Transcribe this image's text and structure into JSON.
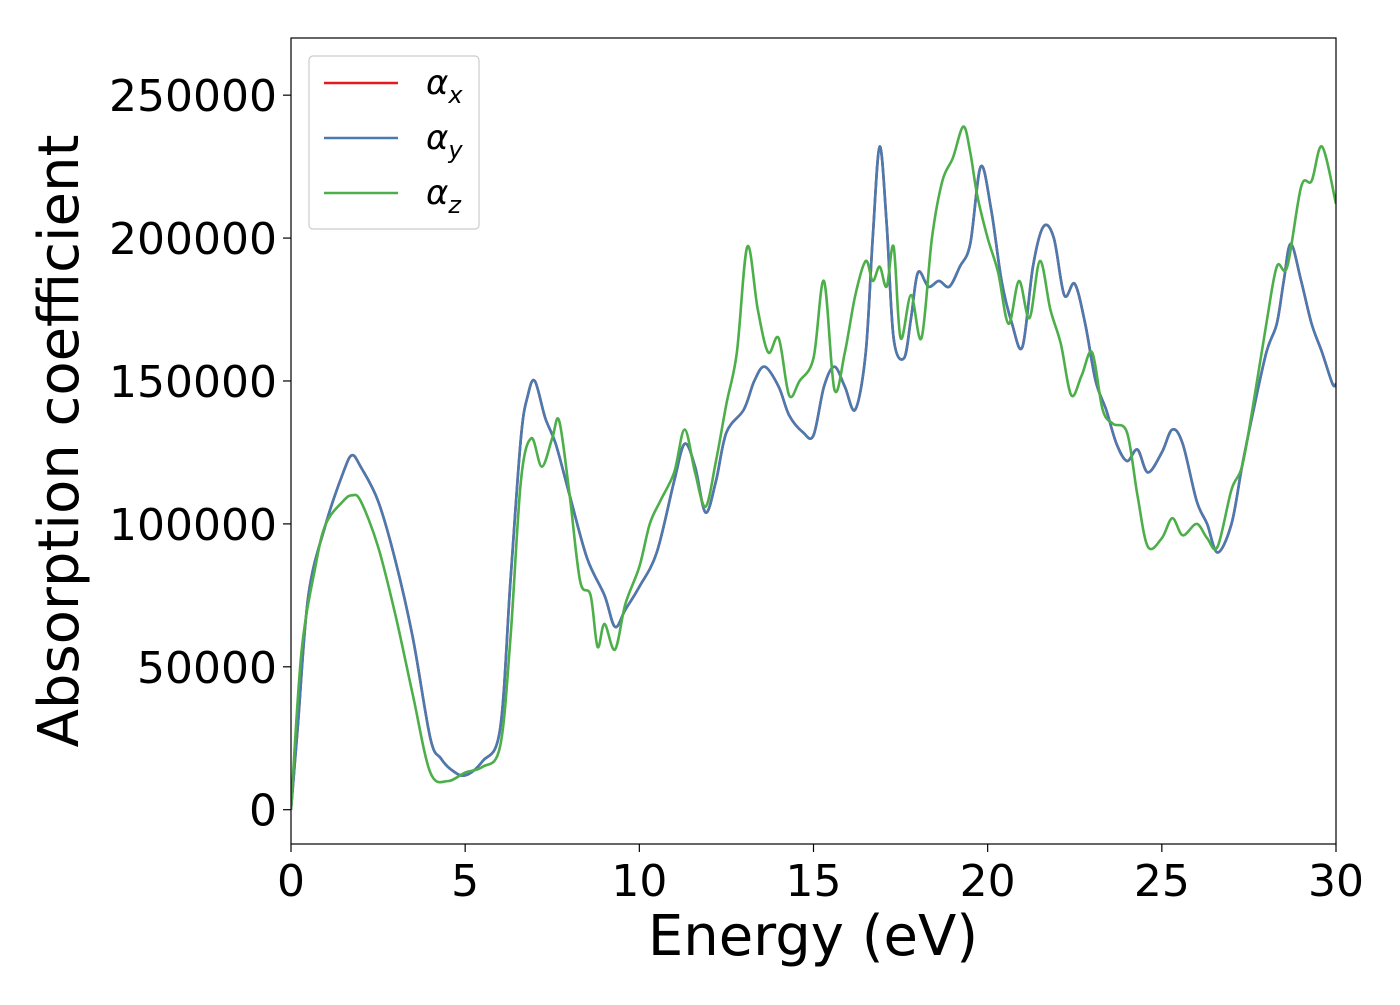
{
  "chart_data": {
    "type": "line",
    "title": "",
    "xlabel": "Energy (eV)",
    "ylabel": "Absorption coefficient",
    "xlim": [
      0,
      30
    ],
    "ylim": [
      -12000,
      270000
    ],
    "xticks": [
      0,
      5,
      10,
      15,
      20,
      25,
      30
    ],
    "xtick_labels": [
      "0",
      "5",
      "10",
      "15",
      "20",
      "25",
      "30"
    ],
    "yticks": [
      0,
      50000,
      100000,
      150000,
      200000,
      250000
    ],
    "ytick_labels": [
      "0",
      "50000",
      "100000",
      "150000",
      "200000",
      "250000"
    ],
    "grid": false,
    "legend_position": "upper-left",
    "series": [
      {
        "name": "αx",
        "name_base": "α",
        "name_sub": "x",
        "color": "#e41a1c",
        "x": [
          0,
          0.2,
          0.5,
          1.0,
          1.5,
          1.75,
          2.0,
          2.5,
          3.0,
          3.5,
          4.0,
          4.3,
          4.6,
          5.0,
          5.5,
          6.0,
          6.3,
          6.6,
          6.8,
          7.0,
          7.3,
          7.6,
          8.0,
          8.5,
          9.0,
          9.3,
          9.6,
          10.0,
          10.5,
          11.0,
          11.3,
          11.6,
          11.9,
          12.2,
          12.5,
          13.0,
          13.3,
          13.6,
          14.0,
          14.3,
          14.7,
          15.0,
          15.3,
          15.6,
          15.9,
          16.2,
          16.5,
          16.7,
          16.9,
          17.1,
          17.3,
          17.6,
          17.8,
          18.0,
          18.3,
          18.6,
          18.9,
          19.2,
          19.5,
          19.8,
          20.1,
          20.4,
          20.7,
          21.0,
          21.3,
          21.6,
          21.9,
          22.2,
          22.5,
          22.8,
          23.1,
          23.4,
          23.7,
          24.0,
          24.3,
          24.6,
          25.0,
          25.3,
          25.6,
          26.0,
          26.3,
          26.6,
          27.0,
          27.3,
          27.6,
          28.0,
          28.3,
          28.5,
          28.7,
          29.0,
          29.3,
          29.6,
          29.9,
          30.0
        ],
        "y": [
          0,
          30000,
          75000,
          100000,
          118000,
          124000,
          120000,
          108000,
          87000,
          60000,
          25000,
          18000,
          14000,
          12000,
          17000,
          28000,
          80000,
          130000,
          145000,
          150000,
          137000,
          128000,
          110000,
          88000,
          75000,
          64000,
          70000,
          78000,
          90000,
          115000,
          128000,
          120000,
          104000,
          115000,
          132000,
          140000,
          150000,
          155000,
          148000,
          138000,
          132000,
          131000,
          148000,
          155000,
          148000,
          140000,
          160000,
          200000,
          232000,
          205000,
          165000,
          158000,
          172000,
          188000,
          183000,
          185000,
          183000,
          190000,
          198000,
          225000,
          210000,
          185000,
          170000,
          162000,
          190000,
          204000,
          200000,
          180000,
          184000,
          170000,
          150000,
          140000,
          128000,
          122000,
          126000,
          118000,
          125000,
          133000,
          128000,
          108000,
          100000,
          90000,
          100000,
          120000,
          138000,
          160000,
          170000,
          185000,
          198000,
          185000,
          170000,
          160000,
          149000,
          149000
        ]
      },
      {
        "name": "αy",
        "name_base": "α",
        "name_sub": "y",
        "color": "#4a7bb0",
        "x": [
          0,
          0.2,
          0.5,
          1.0,
          1.5,
          1.75,
          2.0,
          2.5,
          3.0,
          3.5,
          4.0,
          4.3,
          4.6,
          5.0,
          5.5,
          6.0,
          6.3,
          6.6,
          6.8,
          7.0,
          7.3,
          7.6,
          8.0,
          8.5,
          9.0,
          9.3,
          9.6,
          10.0,
          10.5,
          11.0,
          11.3,
          11.6,
          11.9,
          12.2,
          12.5,
          13.0,
          13.3,
          13.6,
          14.0,
          14.3,
          14.7,
          15.0,
          15.3,
          15.6,
          15.9,
          16.2,
          16.5,
          16.7,
          16.9,
          17.1,
          17.3,
          17.6,
          17.8,
          18.0,
          18.3,
          18.6,
          18.9,
          19.2,
          19.5,
          19.8,
          20.1,
          20.4,
          20.7,
          21.0,
          21.3,
          21.6,
          21.9,
          22.2,
          22.5,
          22.8,
          23.1,
          23.4,
          23.7,
          24.0,
          24.3,
          24.6,
          25.0,
          25.3,
          25.6,
          26.0,
          26.3,
          26.6,
          27.0,
          27.3,
          27.6,
          28.0,
          28.3,
          28.5,
          28.7,
          29.0,
          29.3,
          29.6,
          29.9,
          30.0
        ],
        "y": [
          0,
          30000,
          75000,
          100000,
          118000,
          124000,
          120000,
          108000,
          87000,
          60000,
          25000,
          18000,
          14000,
          12000,
          17000,
          28000,
          80000,
          130000,
          145000,
          150000,
          137000,
          128000,
          110000,
          88000,
          75000,
          64000,
          70000,
          78000,
          90000,
          115000,
          128000,
          120000,
          104000,
          115000,
          132000,
          140000,
          150000,
          155000,
          148000,
          138000,
          132000,
          131000,
          148000,
          155000,
          148000,
          140000,
          160000,
          200000,
          232000,
          205000,
          165000,
          158000,
          172000,
          188000,
          183000,
          185000,
          183000,
          190000,
          198000,
          225000,
          210000,
          185000,
          170000,
          162000,
          190000,
          204000,
          200000,
          180000,
          184000,
          170000,
          150000,
          140000,
          128000,
          122000,
          126000,
          118000,
          125000,
          133000,
          128000,
          108000,
          100000,
          90000,
          100000,
          120000,
          138000,
          160000,
          170000,
          185000,
          198000,
          185000,
          170000,
          160000,
          149000,
          149000
        ]
      },
      {
        "name": "αz",
        "name_base": "α",
        "name_sub": "z",
        "color": "#4daf4a",
        "x": [
          0,
          0.3,
          0.7,
          1.0,
          1.5,
          1.75,
          2.0,
          2.5,
          3.0,
          3.5,
          4.0,
          4.5,
          5.0,
          5.5,
          6.0,
          6.3,
          6.6,
          6.9,
          7.2,
          7.5,
          7.7,
          8.0,
          8.3,
          8.6,
          8.8,
          9.0,
          9.3,
          9.6,
          10.0,
          10.3,
          10.6,
          11.0,
          11.3,
          11.6,
          11.9,
          12.2,
          12.5,
          12.8,
          13.1,
          13.4,
          13.7,
          14.0,
          14.3,
          14.6,
          15.0,
          15.3,
          15.6,
          15.9,
          16.2,
          16.5,
          16.7,
          16.9,
          17.1,
          17.3,
          17.5,
          17.8,
          18.1,
          18.4,
          18.7,
          19.0,
          19.3,
          19.5,
          19.7,
          20.0,
          20.3,
          20.6,
          20.9,
          21.2,
          21.5,
          21.8,
          22.1,
          22.4,
          22.7,
          23.0,
          23.3,
          23.6,
          24.0,
          24.3,
          24.6,
          25.0,
          25.3,
          25.6,
          26.0,
          26.3,
          26.6,
          27.0,
          27.3,
          27.6,
          28.0,
          28.3,
          28.6,
          29.0,
          29.3,
          29.6,
          30.0
        ],
        "y": [
          0,
          55000,
          85000,
          100000,
          108000,
          110000,
          108000,
          92000,
          68000,
          40000,
          13000,
          10000,
          13000,
          15000,
          22000,
          60000,
          115000,
          130000,
          120000,
          130000,
          136000,
          110000,
          80000,
          75000,
          57000,
          65000,
          56000,
          72000,
          85000,
          100000,
          108000,
          118000,
          133000,
          118000,
          106000,
          122000,
          142000,
          160000,
          197000,
          175000,
          160000,
          165000,
          145000,
          150000,
          158000,
          185000,
          147000,
          160000,
          180000,
          192000,
          185000,
          190000,
          183000,
          197000,
          165000,
          180000,
          165000,
          200000,
          220000,
          228000,
          239000,
          230000,
          215000,
          200000,
          188000,
          170000,
          185000,
          172000,
          192000,
          175000,
          163000,
          145000,
          152000,
          160000,
          140000,
          135000,
          132000,
          110000,
          92000,
          95000,
          102000,
          96000,
          100000,
          95000,
          92000,
          112000,
          120000,
          140000,
          170000,
          190000,
          190000,
          218000,
          220000,
          232000,
          212000
        ]
      }
    ]
  }
}
